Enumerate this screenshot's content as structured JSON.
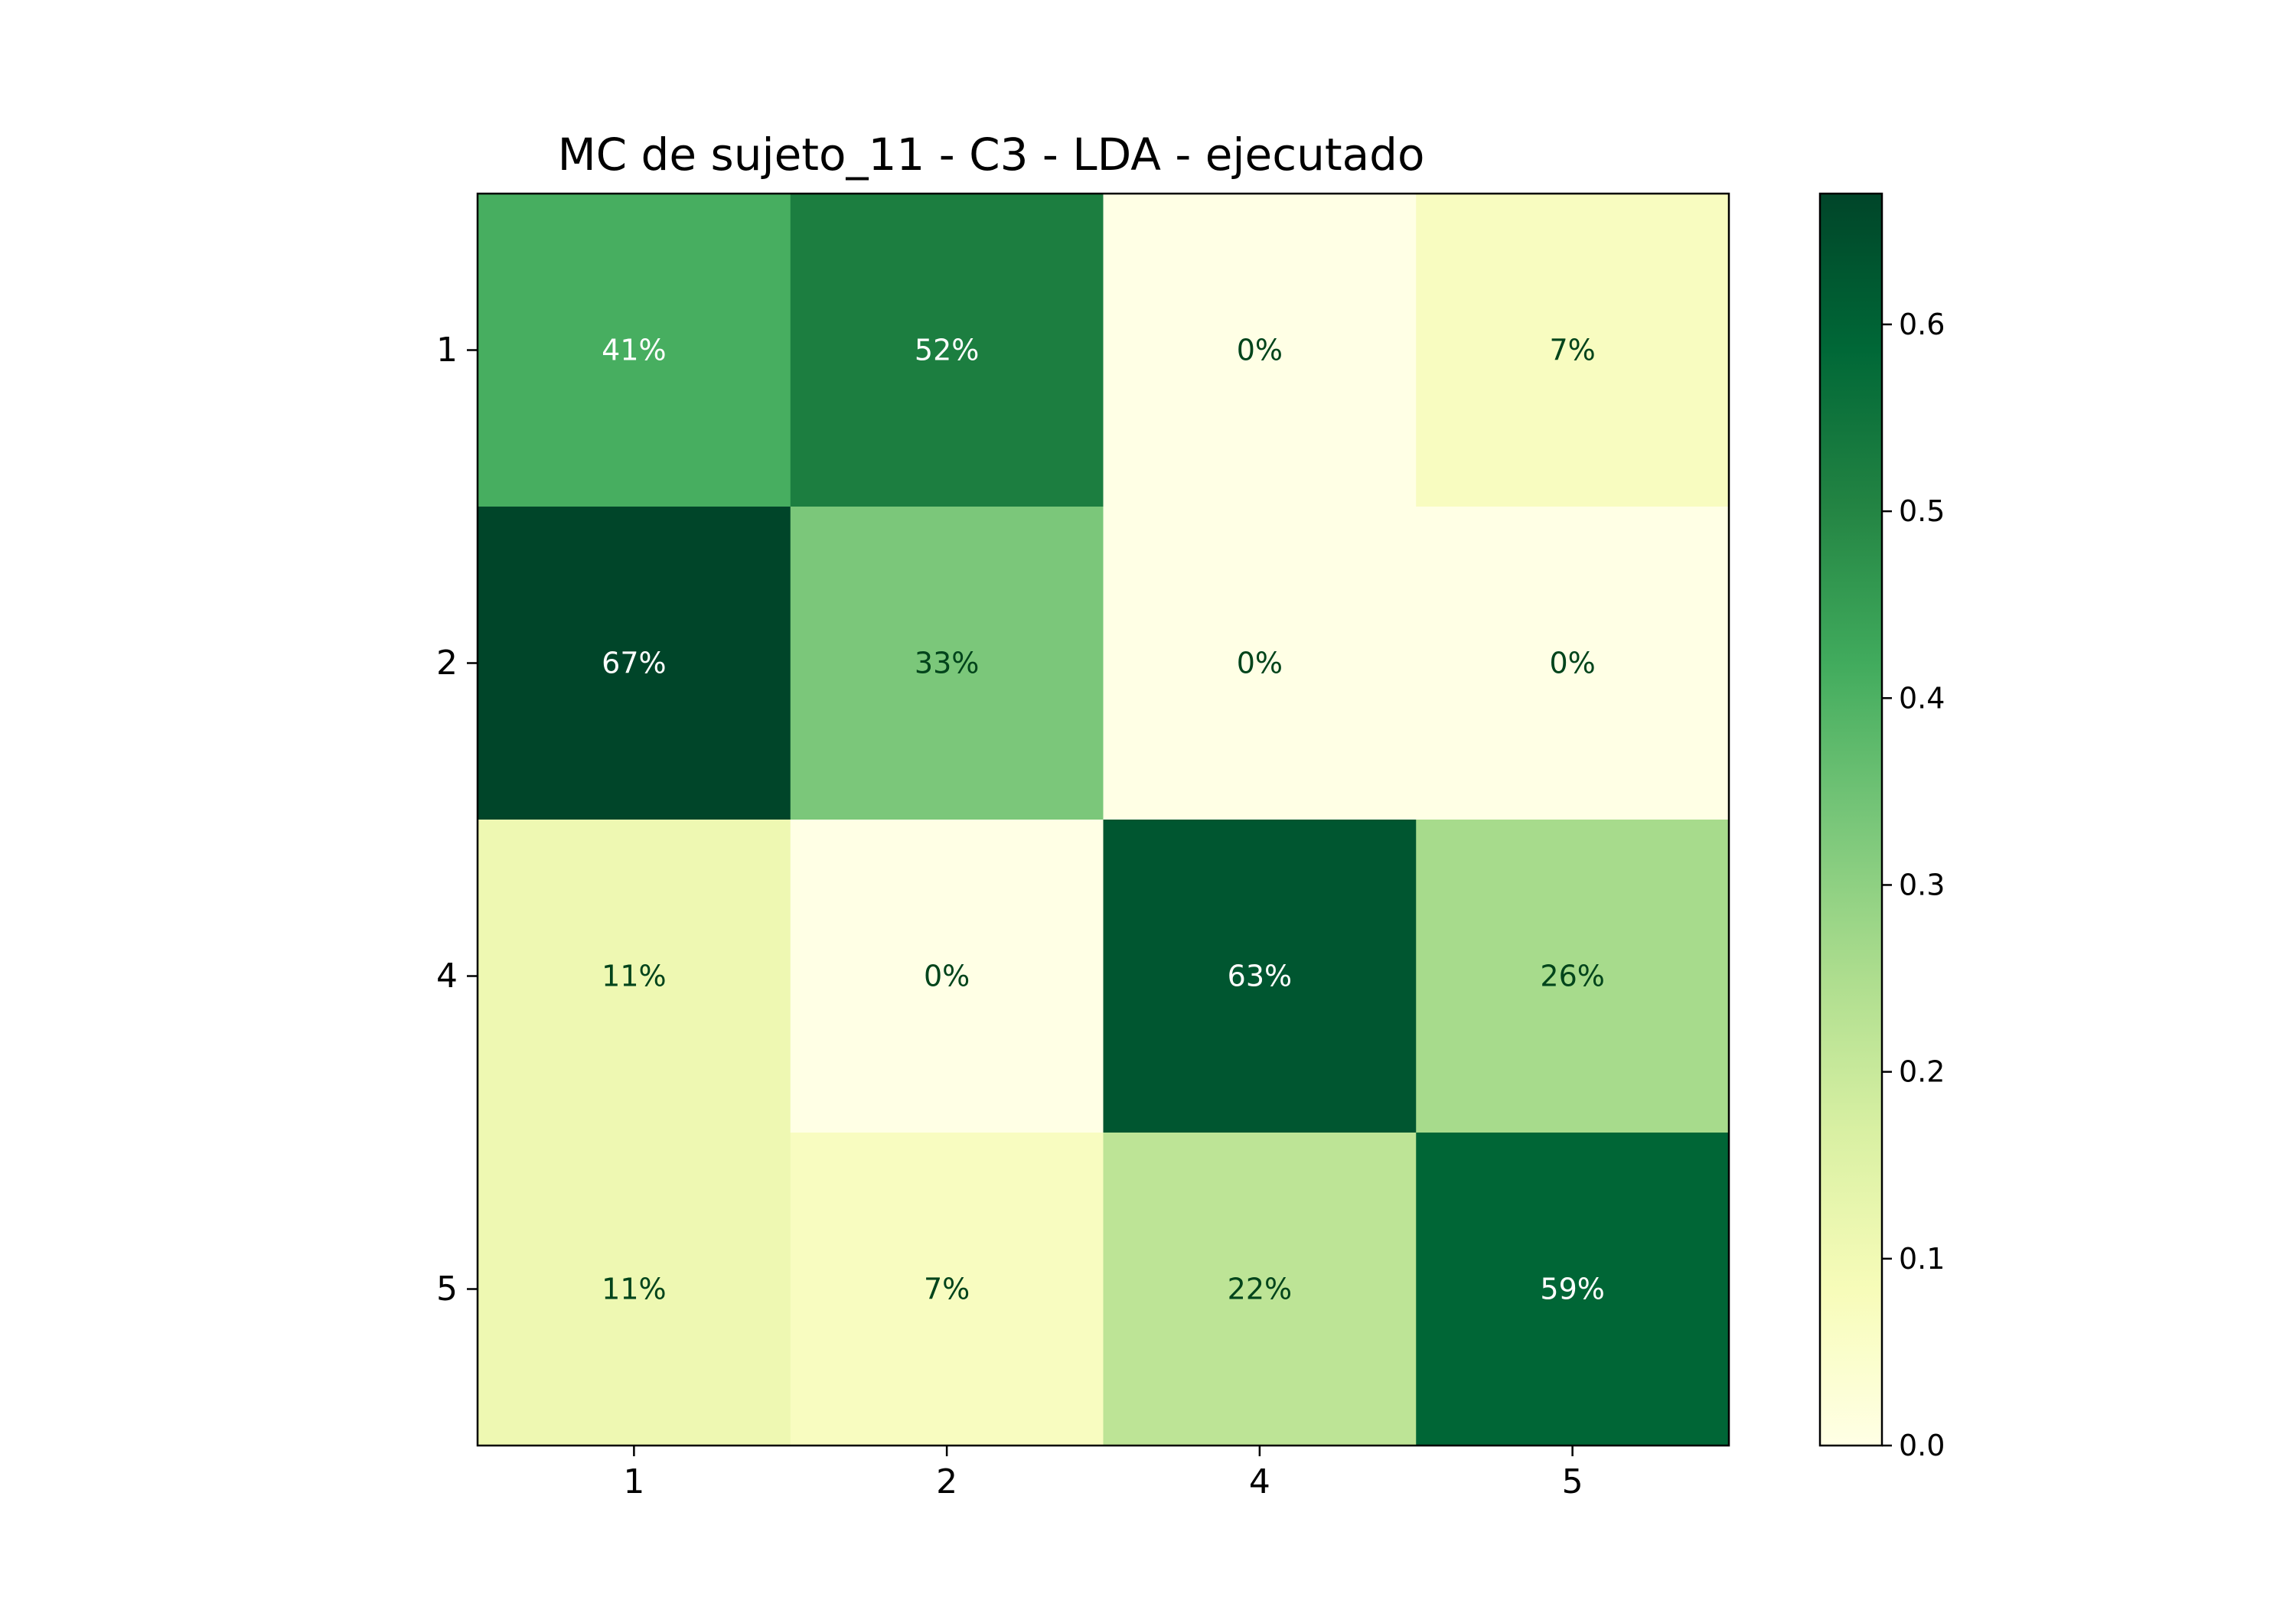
{
  "chart_data": {
    "type": "heatmap",
    "title": "MC de sujeto_11 - C3 - LDA - ejecutado",
    "xlabel": "",
    "ylabel": "",
    "x_categories": [
      "1",
      "2",
      "4",
      "5"
    ],
    "y_categories": [
      "1",
      "2",
      "4",
      "5"
    ],
    "values": [
      [
        0.41,
        0.52,
        0.0,
        0.07
      ],
      [
        0.67,
        0.33,
        0.0,
        0.0
      ],
      [
        0.11,
        0.0,
        0.63,
        0.26
      ],
      [
        0.11,
        0.07,
        0.22,
        0.59
      ]
    ],
    "cell_labels": [
      [
        "41%",
        "52%",
        "0%",
        "7%"
      ],
      [
        "67%",
        "33%",
        "0%",
        "0%"
      ],
      [
        "11%",
        "0%",
        "63%",
        "26%"
      ],
      [
        "11%",
        "7%",
        "22%",
        "59%"
      ]
    ],
    "colormap": "YlGn",
    "colorbar": {
      "range": [
        0.0,
        0.67
      ],
      "ticks": [
        0.0,
        0.1,
        0.2,
        0.3,
        0.4,
        0.5,
        0.6
      ],
      "tick_labels": [
        "0.0",
        "0.1",
        "0.2",
        "0.3",
        "0.4",
        "0.5",
        "0.6"
      ]
    },
    "grid": false
  }
}
